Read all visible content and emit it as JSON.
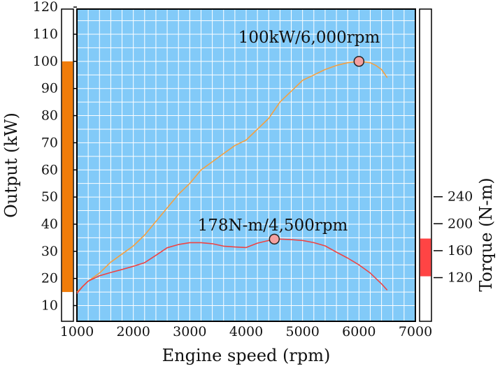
{
  "chart_data": {
    "type": "line",
    "xlabel": "Engine speed (rpm)",
    "ylabel_left": "Output (kW)",
    "ylabel_right": "Torque (N-m)",
    "x_ticks": [
      "1000",
      "2000",
      "3000",
      "4000",
      "5000",
      "6000",
      "7000"
    ],
    "xlim": [
      1000,
      7000
    ],
    "y_left_ticks": [
      "10",
      "20",
      "30",
      "40",
      "50",
      "60",
      "70",
      "80",
      "90",
      "100",
      "110",
      "120"
    ],
    "ylim_left": [
      5,
      120
    ],
    "y_right_ticks": [
      "120",
      "160",
      "200",
      "240"
    ],
    "right_tick_values": [
      120,
      160,
      200,
      240
    ],
    "grid": true,
    "colors": {
      "background": "#82caf8",
      "grid": "#ffffff",
      "output_line": "#f5a040",
      "torque_line": "#ee4444",
      "output_bar": "#f07c0a",
      "torque_bar": "#ff4444",
      "marker_fill": "#f4a0a0"
    },
    "side_bars": {
      "output_range_kw": [
        15,
        100
      ],
      "torque_range_nm": [
        122,
        178
      ]
    },
    "series": [
      {
        "key": "output",
        "axis": "left",
        "x": [
          1000,
          1200,
          1400,
          1600,
          1800,
          2000,
          2200,
          2400,
          2600,
          2800,
          3000,
          3200,
          3400,
          3600,
          3800,
          4000,
          4200,
          4400,
          4600,
          4800,
          5000,
          5200,
          5400,
          5600,
          5800,
          6000,
          6200,
          6300,
          6400,
          6500
        ],
        "y": [
          15,
          19,
          22,
          26,
          29,
          32,
          36,
          41,
          46,
          51,
          55,
          60,
          63,
          66,
          69,
          71,
          75,
          79,
          85,
          89,
          93,
          95,
          97,
          98.5,
          99.5,
          100,
          99.5,
          98.5,
          97,
          94
        ]
      },
      {
        "key": "torque",
        "axis": "left",
        "x": [
          1000,
          1100,
          1200,
          1400,
          1600,
          1800,
          2000,
          2200,
          2400,
          2600,
          2800,
          3000,
          3200,
          3400,
          3600,
          3800,
          4000,
          4200,
          4400,
          4500,
          4600,
          4800,
          5000,
          5200,
          5400,
          5600,
          5800,
          6000,
          6200,
          6400,
          6500
        ],
        "y": [
          14.5,
          17,
          19,
          21,
          22.2,
          23.3,
          24.5,
          25.8,
          28.5,
          31.3,
          32.5,
          33.2,
          33.2,
          32.8,
          31.9,
          31.6,
          31.4,
          33,
          34,
          34.5,
          34.5,
          34.3,
          34,
          33.2,
          32,
          29.7,
          27.5,
          25,
          22,
          18,
          15.7
        ]
      }
    ],
    "annotations": [
      {
        "text": "100kW/6,000rpm",
        "point": [
          6000,
          100
        ]
      },
      {
        "text": "178N-m/4,500rpm",
        "point": [
          4500,
          34.5
        ]
      }
    ]
  }
}
